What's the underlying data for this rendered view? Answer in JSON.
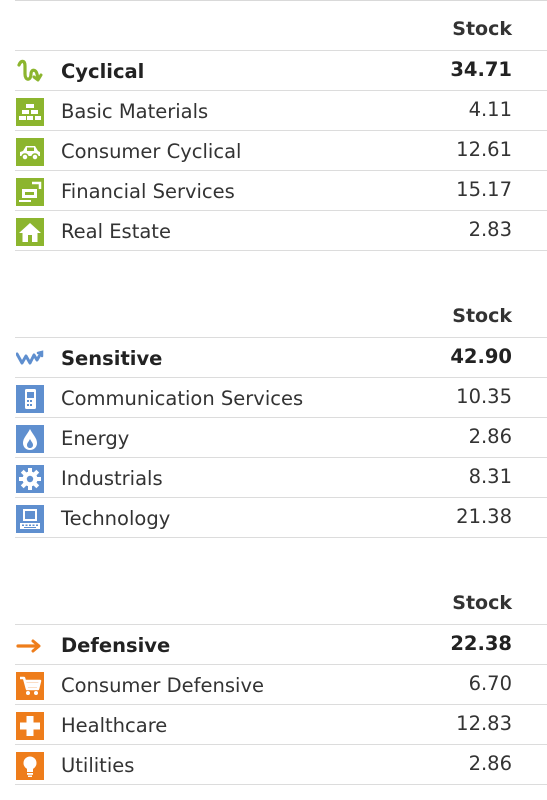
{
  "groups": [
    {
      "column_header": "Stock",
      "super_sector": {
        "label": "Cyclical",
        "value": "34.71",
        "icon": "cyclical-icon"
      },
      "sectors": [
        {
          "label": "Basic Materials",
          "value": "4.11",
          "icon": "basic-materials-icon"
        },
        {
          "label": "Consumer Cyclical",
          "value": "12.61",
          "icon": "consumer-cyclical-icon"
        },
        {
          "label": "Financial Services",
          "value": "15.17",
          "icon": "financial-services-icon"
        },
        {
          "label": "Real Estate",
          "value": "2.83",
          "icon": "real-estate-icon"
        }
      ],
      "color": "#8cb52e"
    },
    {
      "column_header": "Stock",
      "super_sector": {
        "label": "Sensitive",
        "value": "42.90",
        "icon": "sensitive-icon"
      },
      "sectors": [
        {
          "label": "Communication Services",
          "value": "10.35",
          "icon": "communication-services-icon"
        },
        {
          "label": "Energy",
          "value": "2.86",
          "icon": "energy-icon"
        },
        {
          "label": "Industrials",
          "value": "8.31",
          "icon": "industrials-icon"
        },
        {
          "label": "Technology",
          "value": "21.38",
          "icon": "technology-icon"
        }
      ],
      "color": "#5f8fcf"
    },
    {
      "column_header": "Stock",
      "super_sector": {
        "label": "Defensive",
        "value": "22.38",
        "icon": "defensive-icon"
      },
      "sectors": [
        {
          "label": "Consumer Defensive",
          "value": "6.70",
          "icon": "consumer-defensive-icon"
        },
        {
          "label": "Healthcare",
          "value": "12.83",
          "icon": "healthcare-icon"
        },
        {
          "label": "Utilities",
          "value": "2.86",
          "icon": "utilities-icon"
        }
      ],
      "color": "#ee7d1b"
    }
  ]
}
